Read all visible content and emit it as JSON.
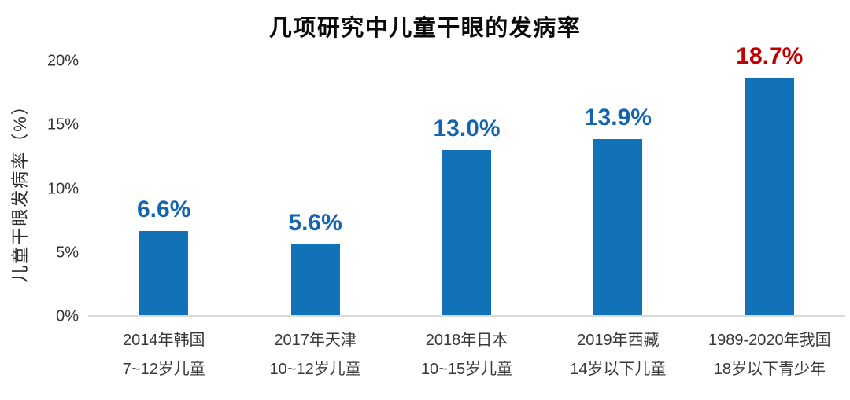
{
  "page": {
    "title": "几项研究中儿童干眼的发病率"
  },
  "y_axis": {
    "label": "儿童干眼发病率（%）",
    "ticks": [
      "20%",
      "15%",
      "10%",
      "5%",
      "0%"
    ]
  },
  "colors": {
    "bar_blue": "#1272B8",
    "value_label_blue": "#1565AE",
    "value_label_red": "#C00000",
    "axis_line": "#D9D9D9",
    "tick_text": "#333333",
    "category_text": "#383838",
    "title_text": "#0A0A0A"
  },
  "chart_data": {
    "type": "bar",
    "title": "几项研究中儿童干眼的发病率",
    "ylabel": "儿童干眼发病率（%）",
    "xlabel": "",
    "ylim": [
      0,
      20
    ],
    "ytick_step": 5,
    "grid": false,
    "legend": false,
    "categories": [
      {
        "line1": "2014年韩国",
        "line2": "7~12岁儿童"
      },
      {
        "line1": "2017年天津",
        "line2": "10~12岁儿童"
      },
      {
        "line1": "2018年日本",
        "line2": "10~15岁儿童"
      },
      {
        "line1": "2019年西藏",
        "line2": "14岁以下儿童"
      },
      {
        "line1": "1989-2020年我国",
        "line2": "18岁以下青少年"
      }
    ],
    "values": [
      6.6,
      5.6,
      13.0,
      13.9,
      18.7
    ],
    "value_labels": [
      "6.6%",
      "5.6%",
      "13.0%",
      "13.9%",
      "18.7%"
    ],
    "highlight_index": 4
  }
}
